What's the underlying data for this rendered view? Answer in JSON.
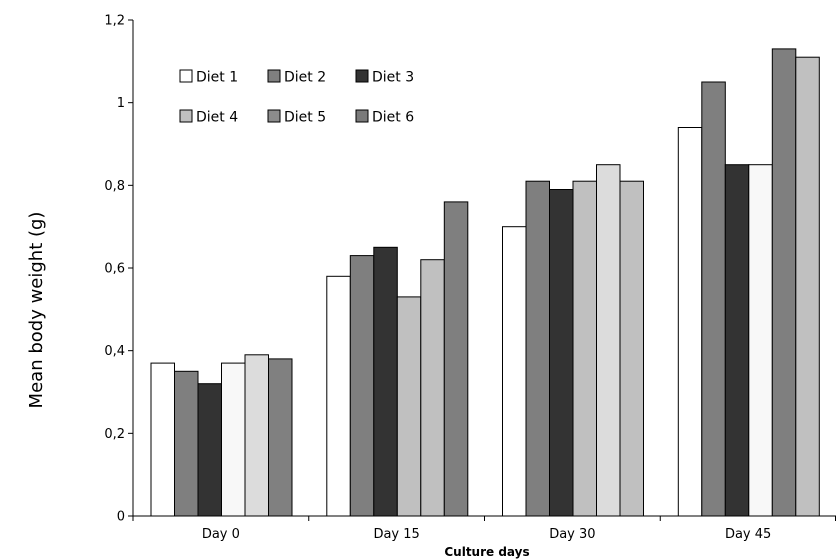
{
  "chart_data": {
    "type": "bar",
    "title": "",
    "xlabel": "Culture days",
    "ylabel": "Mean body weight (g)",
    "categories": [
      "Day 0",
      "Day 15",
      "Day 30",
      "Day 45"
    ],
    "ylim": [
      0,
      1.2
    ],
    "yticks": [
      "0",
      "0,2",
      "0,4",
      "0,6",
      "0,8",
      "1",
      "1,2"
    ],
    "ytick_values": [
      0,
      0.2,
      0.4,
      0.6,
      0.8,
      1.0,
      1.2
    ],
    "grid": false,
    "legend_position": "top-left",
    "series": [
      {
        "name": "Diet 1",
        "color": "#ffffff",
        "values": [
          0.37,
          0.58,
          0.7,
          0.94
        ]
      },
      {
        "name": "Diet 2",
        "color": "#7f7f7f",
        "values": [
          0.35,
          0.63,
          0.81,
          1.05
        ]
      },
      {
        "name": "Diet 3",
        "color": "#333333",
        "values": [
          0.32,
          0.65,
          0.79,
          0.85
        ]
      },
      {
        "name": "Diet 4",
        "color": "#c0c0c0",
        "values": [
          0.37,
          0.53,
          0.81,
          0.85
        ]
      },
      {
        "name": "Diet 5",
        "color": "#8c8c8c",
        "values": [
          0.39,
          0.62,
          0.85,
          1.13
        ]
      },
      {
        "name": "Diet 6",
        "color": "#7a7a7a",
        "values": [
          0.38,
          0.76,
          0.81,
          1.11
        ]
      }
    ],
    "bar_colors": [
      [
        "#ffffff",
        "#7f7f7f",
        "#333333",
        "#f8f8f8",
        "#dcdcdc",
        "#808080"
      ],
      [
        "#ffffff",
        "#7f7f7f",
        "#333333",
        "#c0c0c0",
        "#c0c0c0",
        "#7f7f7f"
      ],
      [
        "#ffffff",
        "#7f7f7f",
        "#333333",
        "#c0c0c0",
        "#dcdcdc",
        "#c0c0c0"
      ],
      [
        "#ffffff",
        "#7f7f7f",
        "#333333",
        "#f8f8f8",
        "#7f7f7f",
        "#c0c0c0"
      ]
    ]
  }
}
